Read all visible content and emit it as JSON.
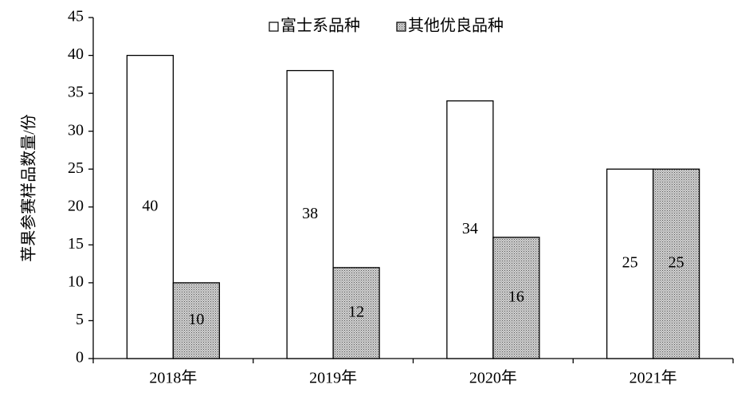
{
  "chart_data": {
    "type": "bar",
    "y_label": "苹果参赛样品数量/份",
    "categories": [
      "2018年",
      "2019年",
      "2020年",
      "2021年"
    ],
    "series": [
      {
        "name": "富士系品种",
        "color": "#ffffff",
        "values": [
          40,
          38,
          34,
          25
        ]
      },
      {
        "name": "其他优良品种",
        "color": "#d0d0d0",
        "values": [
          10,
          12,
          16,
          25
        ]
      }
    ],
    "ylim": [
      0,
      45
    ],
    "yticks": [
      0,
      5,
      10,
      15,
      20,
      25,
      30,
      35,
      40,
      45
    ],
    "grid": false,
    "legend": "top",
    "data_labels": true
  }
}
